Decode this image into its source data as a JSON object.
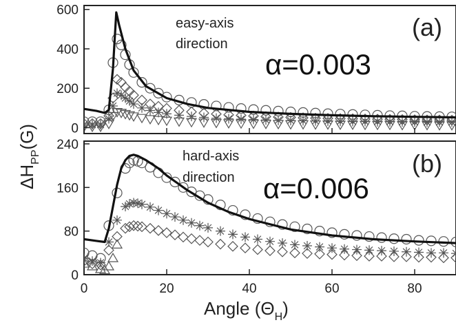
{
  "chart_data": [
    {
      "panel": "a",
      "type": "line",
      "panel_label": "(a)",
      "annotation": [
        "easy-axis",
        "direction"
      ],
      "param_label": "α=0.003",
      "xlim": [
        0,
        90
      ],
      "ylim": [
        -30,
        620
      ],
      "yticks": [
        0,
        200,
        400,
        600
      ],
      "xticks": [
        0,
        20,
        40,
        60,
        80
      ],
      "fit_line": {
        "x": [
          0,
          3,
          5,
          6,
          7,
          7.8,
          8.5,
          10,
          12,
          15,
          20,
          25,
          30,
          40,
          50,
          60,
          70,
          80,
          90
        ],
        "y": [
          95,
          85,
          75,
          90,
          300,
          585,
          520,
          400,
          290,
          210,
          150,
          120,
          100,
          80,
          70,
          63,
          58,
          55,
          52
        ]
      },
      "series": [
        {
          "marker": "circle",
          "x": [
            0,
            2,
            4,
            6,
            7,
            8,
            9,
            10,
            11,
            12,
            14,
            16,
            18,
            20,
            23,
            26,
            29,
            32,
            35,
            38,
            41,
            44,
            47,
            50,
            53,
            56,
            59,
            62,
            65,
            68,
            71,
            74,
            77,
            80,
            83,
            86,
            89
          ],
          "y": [
            30,
            30,
            30,
            90,
            330,
            450,
            420,
            370,
            320,
            280,
            230,
            200,
            175,
            155,
            140,
            128,
            118,
            110,
            103,
            97,
            92,
            88,
            84,
            80,
            77,
            74,
            71,
            69,
            67,
            65,
            63,
            61,
            60,
            58,
            57,
            56,
            55
          ]
        },
        {
          "marker": "diamond",
          "x": [
            0,
            2,
            4,
            6,
            7,
            8,
            9,
            10,
            11,
            12,
            14,
            16,
            18,
            20,
            23,
            26,
            29,
            32,
            35,
            38,
            41,
            44,
            47,
            50,
            53,
            56,
            59,
            62,
            65,
            68,
            71,
            74,
            77,
            80,
            83,
            86,
            89
          ],
          "y": [
            20,
            20,
            20,
            60,
            150,
            245,
            230,
            205,
            185,
            165,
            140,
            120,
            108,
            98,
            88,
            80,
            74,
            69,
            65,
            62,
            59,
            56,
            54,
            52,
            50,
            48,
            47,
            46,
            45,
            44,
            43,
            42,
            41,
            40,
            39,
            39,
            38
          ]
        },
        {
          "marker": "star",
          "x": [
            0,
            2,
            4,
            6,
            7,
            8,
            9,
            10,
            11,
            12,
            14,
            16,
            18,
            20,
            23,
            26,
            29,
            32,
            35,
            38,
            41,
            44,
            47,
            50,
            53,
            56,
            59,
            62,
            65,
            68,
            71,
            74,
            77,
            80,
            83,
            86,
            89
          ],
          "y": [
            15,
            15,
            15,
            45,
            110,
            175,
            165,
            150,
            135,
            120,
            100,
            87,
            77,
            70,
            63,
            57,
            52,
            48,
            45,
            43,
            41,
            39,
            37,
            36,
            35,
            34,
            33,
            32,
            31,
            31,
            30,
            30,
            29,
            29,
            28,
            28,
            28
          ]
        },
        {
          "marker": "triangle-down",
          "x": [
            0,
            2,
            4,
            6,
            7,
            8,
            9,
            10,
            11,
            12,
            14,
            16,
            18,
            20,
            23,
            26,
            29,
            32,
            35,
            38,
            41,
            44,
            47,
            50,
            53,
            56,
            59,
            62,
            65,
            68,
            71,
            74,
            77,
            80,
            83,
            86,
            89
          ],
          "y": [
            5,
            5,
            5,
            20,
            60,
            80,
            76,
            70,
            64,
            58,
            50,
            44,
            40,
            36,
            32,
            29,
            27,
            25,
            23,
            22,
            21,
            20,
            19,
            18,
            18,
            17,
            17,
            16,
            16,
            15,
            15,
            15,
            14,
            14,
            14,
            13,
            13
          ]
        }
      ]
    },
    {
      "panel": "b",
      "type": "line",
      "panel_label": "(b)",
      "annotation": [
        "hard-axis",
        "direction"
      ],
      "param_label": "α=0.006",
      "xlim": [
        0,
        90
      ],
      "ylim": [
        0,
        245
      ],
      "yticks": [
        0,
        80,
        160,
        240
      ],
      "xticks": [
        0,
        20,
        40,
        60,
        80
      ],
      "fit_line": {
        "x": [
          0,
          3,
          5,
          6,
          7,
          8,
          9,
          10,
          11,
          12,
          13,
          15,
          18,
          20,
          25,
          30,
          35,
          40,
          50,
          60,
          70,
          80,
          90
        ],
        "y": [
          65,
          62,
          60,
          85,
          125,
          165,
          195,
          210,
          218,
          220,
          218,
          210,
          195,
          182,
          155,
          132,
          115,
          102,
          83,
          72,
          65,
          61,
          58
        ]
      },
      "series": [
        {
          "marker": "circle",
          "x": [
            0,
            2,
            4,
            6,
            8,
            10,
            11,
            12,
            13,
            14,
            16,
            18,
            20,
            22,
            24,
            26,
            28,
            30,
            33,
            36,
            39,
            42,
            45,
            48,
            51,
            54,
            57,
            60,
            63,
            66,
            69,
            72,
            75,
            78,
            81,
            84,
            87,
            90
          ],
          "y": [
            40,
            35,
            30,
            90,
            150,
            195,
            205,
            210,
            208,
            205,
            197,
            187,
            178,
            170,
            160,
            152,
            145,
            138,
            128,
            118,
            110,
            103,
            97,
            92,
            88,
            84,
            80,
            77,
            74,
            72,
            70,
            68,
            66,
            65,
            63,
            62,
            61,
            60
          ]
        },
        {
          "marker": "star",
          "x": [
            0,
            2,
            4,
            6,
            8,
            10,
            11,
            12,
            13,
            14,
            16,
            18,
            20,
            22,
            24,
            26,
            28,
            30,
            33,
            36,
            39,
            42,
            45,
            48,
            51,
            54,
            57,
            60,
            63,
            66,
            69,
            72,
            75,
            78,
            81,
            84,
            87,
            90
          ],
          "y": [
            30,
            25,
            22,
            60,
            100,
            125,
            130,
            132,
            131,
            129,
            124,
            118,
            112,
            106,
            100,
            95,
            90,
            86,
            80,
            74,
            69,
            65,
            61,
            58,
            55,
            53,
            51,
            49,
            47,
            46,
            45,
            44,
            43,
            42,
            41,
            40,
            40,
            39
          ]
        },
        {
          "marker": "diamond",
          "x": [
            0,
            2,
            4,
            6,
            8,
            10,
            11,
            12,
            13,
            14,
            16,
            18,
            20,
            22,
            24,
            26,
            28,
            30,
            33,
            36,
            39,
            42,
            45,
            48,
            51,
            54,
            57,
            60,
            63,
            66,
            69,
            72,
            75,
            78,
            81,
            84,
            87,
            90
          ],
          "y": [
            25,
            20,
            18,
            45,
            70,
            85,
            88,
            90,
            89,
            88,
            85,
            81,
            77,
            73,
            69,
            66,
            63,
            60,
            56,
            52,
            49,
            46,
            44,
            42,
            40,
            39,
            38,
            37,
            36,
            35,
            34,
            34,
            33,
            33,
            32,
            32,
            31,
            31
          ]
        },
        {
          "marker": "triangle-up",
          "x": [
            0,
            2,
            4,
            5,
            6,
            7,
            8
          ],
          "y": [
            20,
            15,
            10,
            8,
            15,
            30,
            55
          ]
        }
      ]
    }
  ],
  "axes": {
    "ylabel": "ΔH",
    "ylabel_sub": "PP",
    "ylabel_unit": "(G)",
    "xlabel": "Angle (Θ",
    "xlabel_sub": "H",
    "xlabel_end": ")"
  }
}
